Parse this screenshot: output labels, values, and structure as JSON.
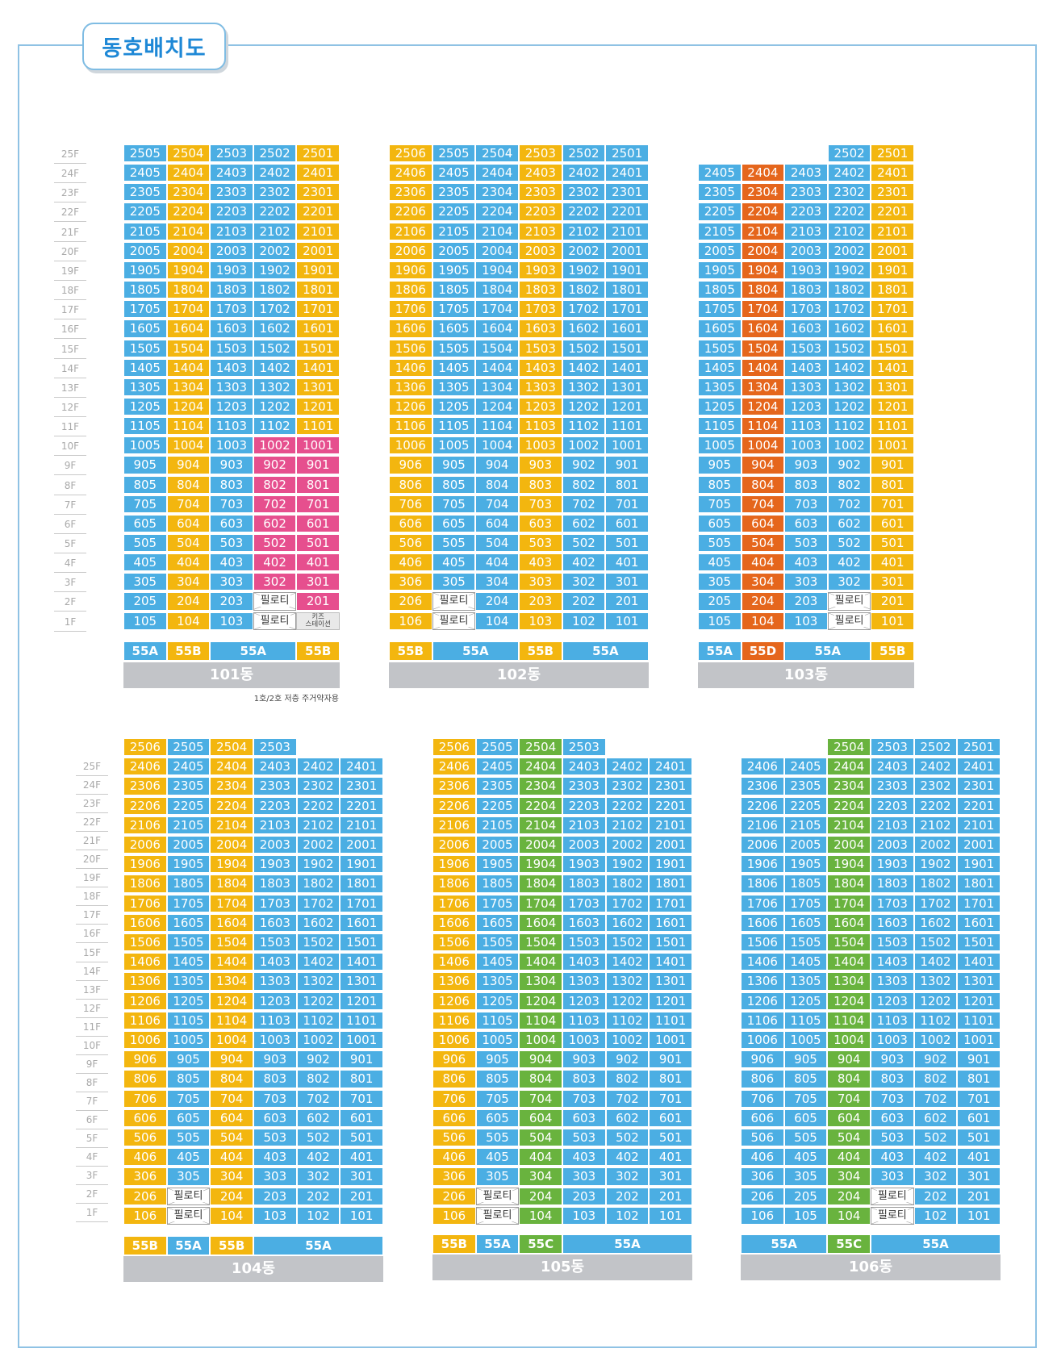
{
  "title": "동호배치도",
  "note": "1호/2호 저층 주거약자용",
  "pilotis_label": "필로티",
  "kids_label": "키즈\n스테이션",
  "colors": {
    "blue": "#4baee3",
    "yellow": "#f3b60f",
    "pink": "#e64f8e",
    "orange": "#e5661c",
    "green": "#69b33e",
    "white": "#ffffff",
    "gray": "#c2c4c8"
  },
  "floor_labels_top": [
    "25F",
    "24F",
    "23F",
    "22F",
    "21F",
    "20F",
    "19F",
    "18F",
    "17F",
    "16F",
    "15F",
    "14F",
    "13F",
    "12F",
    "11F",
    "10F",
    "9F",
    "8F",
    "7F",
    "6F",
    "5F",
    "4F",
    "3F",
    "2F",
    "1F"
  ],
  "floor_labels_bottom": [
    "25F",
    "24F",
    "23F",
    "22F",
    "21F",
    "20F",
    "19F",
    "18F",
    "17F",
    "16F",
    "15F",
    "14F",
    "13F",
    "12F",
    "11F",
    "10F",
    "9F",
    "8F",
    "7F",
    "6F",
    "5F",
    "4F",
    "3F",
    "2F",
    "1F"
  ],
  "buildings": [
    {
      "id": "101",
      "label": "101동",
      "top_floor": 25,
      "units": [
        5,
        4,
        3,
        2,
        1
      ],
      "col_colors": [
        "blue",
        "yellow",
        "blue",
        "blue",
        "yellow"
      ],
      "overrides": [
        {
          "col": 3,
          "floors": [
            2,
            3,
            4,
            5,
            6,
            7,
            8,
            9,
            10
          ],
          "color": "pink"
        },
        {
          "col": 4,
          "floors": [
            1,
            2,
            3,
            4,
            5,
            6,
            7,
            8,
            9,
            10
          ],
          "color": "pink"
        }
      ],
      "missing": [],
      "pilotis": [
        [
          2,
          3
        ],
        [
          1,
          3
        ]
      ],
      "kids": [
        [
          1,
          4
        ]
      ],
      "types": [
        {
          "span": 1,
          "label": "55A",
          "color": "blue"
        },
        {
          "span": 1,
          "label": "55B",
          "color": "yellow"
        },
        {
          "span": 2,
          "label": "55A",
          "color": "blue"
        },
        {
          "span": 1,
          "label": "55B",
          "color": "yellow"
        }
      ]
    },
    {
      "id": "102",
      "label": "102동",
      "top_floor": 25,
      "units": [
        6,
        5,
        4,
        3,
        2,
        1
      ],
      "col_colors": [
        "yellow",
        "blue",
        "blue",
        "yellow",
        "blue",
        "blue"
      ],
      "overrides": [],
      "missing": [],
      "pilotis": [
        [
          2,
          1
        ],
        [
          1,
          1
        ]
      ],
      "kids": [],
      "types": [
        {
          "span": 1,
          "label": "55B",
          "color": "yellow"
        },
        {
          "span": 2,
          "label": "55A",
          "color": "blue"
        },
        {
          "span": 1,
          "label": "55B",
          "color": "yellow"
        },
        {
          "span": 2,
          "label": "55A",
          "color": "blue"
        }
      ]
    },
    {
      "id": "103",
      "label": "103동",
      "top_floor": 25,
      "units": [
        5,
        4,
        3,
        2,
        1
      ],
      "col_colors": [
        "blue",
        "orange",
        "blue",
        "blue",
        "yellow"
      ],
      "overrides": [],
      "missing": [
        [
          25,
          0
        ],
        [
          25,
          1
        ],
        [
          25,
          2
        ]
      ],
      "pilotis": [
        [
          2,
          3
        ],
        [
          1,
          3
        ]
      ],
      "kids": [],
      "types": [
        {
          "span": 1,
          "label": "55A",
          "color": "blue"
        },
        {
          "span": 1,
          "label": "55D",
          "color": "orange"
        },
        {
          "span": 2,
          "label": "55A",
          "color": "blue"
        },
        {
          "span": 1,
          "label": "55B",
          "color": "yellow"
        }
      ]
    },
    {
      "id": "104",
      "label": "104동",
      "top_floor": 25,
      "units": [
        6,
        5,
        4,
        3,
        2,
        1
      ],
      "col_colors": [
        "yellow",
        "blue",
        "yellow",
        "blue",
        "blue",
        "blue"
      ],
      "overrides": [],
      "missing": [
        [
          25,
          4
        ],
        [
          25,
          5
        ]
      ],
      "pilotis": [
        [
          2,
          1
        ],
        [
          1,
          1
        ]
      ],
      "kids": [],
      "types": [
        {
          "span": 1,
          "label": "55B",
          "color": "yellow"
        },
        {
          "span": 1,
          "label": "55A",
          "color": "blue"
        },
        {
          "span": 1,
          "label": "55B",
          "color": "yellow"
        },
        {
          "span": 3,
          "label": "55A",
          "color": "blue"
        }
      ]
    },
    {
      "id": "105",
      "label": "105동",
      "top_floor": 25,
      "units": [
        6,
        5,
        4,
        3,
        2,
        1
      ],
      "col_colors": [
        "yellow",
        "blue",
        "green",
        "blue",
        "blue",
        "blue"
      ],
      "overrides": [],
      "missing": [
        [
          25,
          4
        ],
        [
          25,
          5
        ]
      ],
      "pilotis": [
        [
          2,
          1
        ],
        [
          1,
          1
        ]
      ],
      "kids": [],
      "types": [
        {
          "span": 1,
          "label": "55B",
          "color": "yellow"
        },
        {
          "span": 1,
          "label": "55A",
          "color": "blue"
        },
        {
          "span": 1,
          "label": "55C",
          "color": "green"
        },
        {
          "span": 3,
          "label": "55A",
          "color": "blue"
        }
      ]
    },
    {
      "id": "106",
      "label": "106동",
      "top_floor": 25,
      "units": [
        6,
        5,
        4,
        3,
        2,
        1
      ],
      "col_colors": [
        "blue",
        "blue",
        "green",
        "blue",
        "blue",
        "blue"
      ],
      "overrides": [],
      "missing": [
        [
          25,
          0
        ],
        [
          25,
          1
        ]
      ],
      "pilotis": [
        [
          2,
          3
        ],
        [
          1,
          3
        ]
      ],
      "kids": [],
      "types": [
        {
          "span": 2,
          "label": "55A",
          "color": "blue"
        },
        {
          "span": 1,
          "label": "55C",
          "color": "green"
        },
        {
          "span": 3,
          "label": "55A",
          "color": "blue"
        }
      ]
    }
  ]
}
